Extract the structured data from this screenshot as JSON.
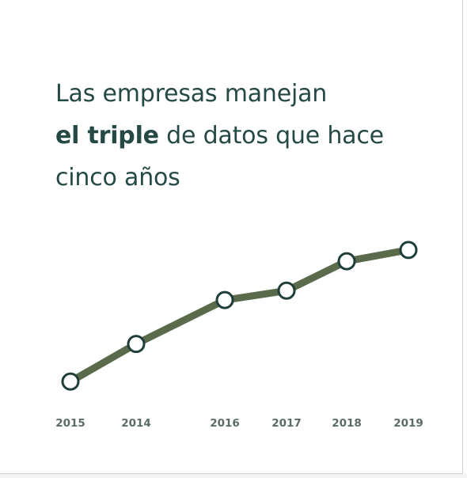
{
  "title": {
    "line1": "Las empresas manejan",
    "line2_bold": "el triple",
    "line2_rest": " de datos que hace",
    "line3": "cinco años"
  },
  "colors": {
    "title": "#254a45",
    "line": "#5a6b4b",
    "marker_stroke": "#1f3e3a",
    "marker_fill": "#ffffff",
    "tick_label": "#5b6b66"
  },
  "chart_data": {
    "type": "line",
    "title": "Las empresas manejan el triple de datos que hace cinco años",
    "categories": [
      "2015",
      "2014",
      "2016",
      "2017",
      "2018",
      "2019"
    ],
    "series": [
      {
        "values": [
          1.0,
          1.6,
          2.3,
          2.45,
          2.92,
          3.1
        ]
      }
    ],
    "ylim": [
      0.9,
      3.3
    ],
    "grid": false,
    "legend": "none"
  }
}
